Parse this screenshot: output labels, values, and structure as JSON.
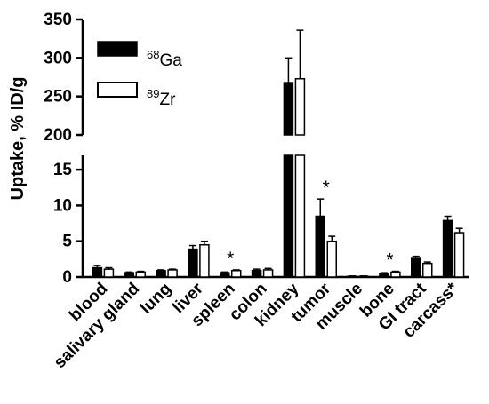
{
  "chart_data": {
    "type": "bar",
    "ylabel": "Uptake, % ID/g",
    "y_axis_break": {
      "lower_range": [
        0,
        17
      ],
      "upper_range": [
        200,
        350
      ]
    },
    "lower_ticks": [
      "0",
      "5",
      "10",
      "15"
    ],
    "upper_ticks": [
      "200",
      "250",
      "300",
      "350"
    ],
    "lower_tick_values": [
      0,
      5,
      10,
      15
    ],
    "upper_tick_values": [
      200,
      250,
      300,
      350
    ],
    "categories": [
      "blood",
      "salivary gland",
      "lung",
      "liver",
      "spleen",
      "colon",
      "kidney",
      "tumor",
      "muscle",
      "bone",
      "GI tract",
      "carcass*"
    ],
    "series": [
      {
        "name": "68Ga",
        "isotope_mass": "68",
        "isotope_symbol": "Ga",
        "color": "#000000",
        "values": [
          1.3,
          0.6,
          0.9,
          3.9,
          0.6,
          0.9,
          268,
          8.5,
          0.1,
          0.5,
          2.6,
          7.9
        ],
        "errors": [
          0.3,
          0.1,
          0.1,
          0.5,
          0.1,
          0.2,
          32,
          2.4,
          0.05,
          0.1,
          0.3,
          0.6
        ]
      },
      {
        "name": "89Zr",
        "isotope_mass": "89",
        "isotope_symbol": "Zr",
        "color": "#ffffff",
        "values": [
          1.1,
          0.7,
          1.0,
          4.5,
          0.9,
          1.0,
          273,
          5.0,
          0.1,
          0.7,
          1.9,
          6.2
        ],
        "errors": [
          0.2,
          0.1,
          0.1,
          0.5,
          0.1,
          0.2,
          63,
          0.7,
          0.05,
          0.1,
          0.2,
          0.6
        ]
      }
    ],
    "significance_markers": [
      {
        "category": "spleen",
        "text": "*"
      },
      {
        "category": "tumor",
        "text": "*"
      },
      {
        "category": "bone",
        "text": "*"
      }
    ],
    "legend_position": "top-left",
    "grid": false
  }
}
